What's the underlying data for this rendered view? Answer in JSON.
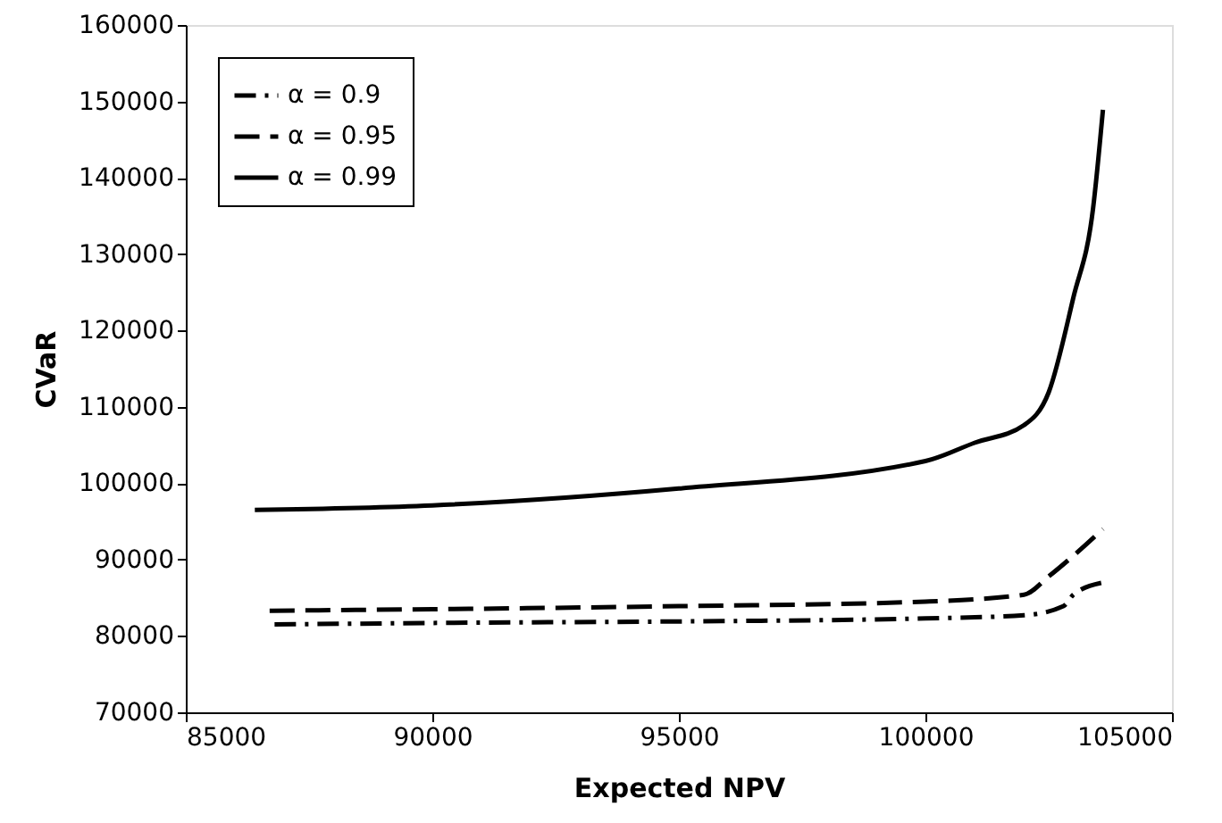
{
  "chart_data": {
    "type": "line",
    "xlabel": "Expected NPV",
    "ylabel": "CVaR",
    "xlim": [
      85000,
      105000
    ],
    "xticks": [
      85000,
      90000,
      95000,
      100000,
      105000
    ],
    "ylim": [
      70000,
      160000
    ],
    "yticks": [
      70000,
      80000,
      90000,
      100000,
      110000,
      120000,
      130000,
      140000,
      150000,
      160000
    ],
    "grid": false,
    "legend": "top left",
    "marker": "none",
    "series": [
      {
        "name": "α = 0.9",
        "color": "#000000",
        "line_style": "dashdot",
        "x": [
          86800,
          90000,
          95000,
          100000,
          102000,
          102800,
          103000,
          103600
        ],
        "values": [
          81500,
          81700,
          81900,
          82300,
          82700,
          83900,
          85400,
          87000
        ]
      },
      {
        "name": "α = 0.95",
        "color": "#000000",
        "line_style": "dashed",
        "x": [
          86700,
          90000,
          95000,
          100000,
          102000,
          102500,
          103000,
          103600
        ],
        "values": [
          83300,
          83500,
          83900,
          84500,
          85400,
          87800,
          90500,
          94000
        ]
      },
      {
        "name": "α = 0.99",
        "color": "#000000",
        "line_style": "solid",
        "x": [
          86400,
          90000,
          95000,
          100000,
          101000,
          102000,
          102500,
          103000,
          103400,
          103600
        ],
        "values": [
          96500,
          97100,
          99300,
          102900,
          105300,
          107600,
          111900,
          124300,
          136000,
          148900
        ]
      }
    ]
  }
}
